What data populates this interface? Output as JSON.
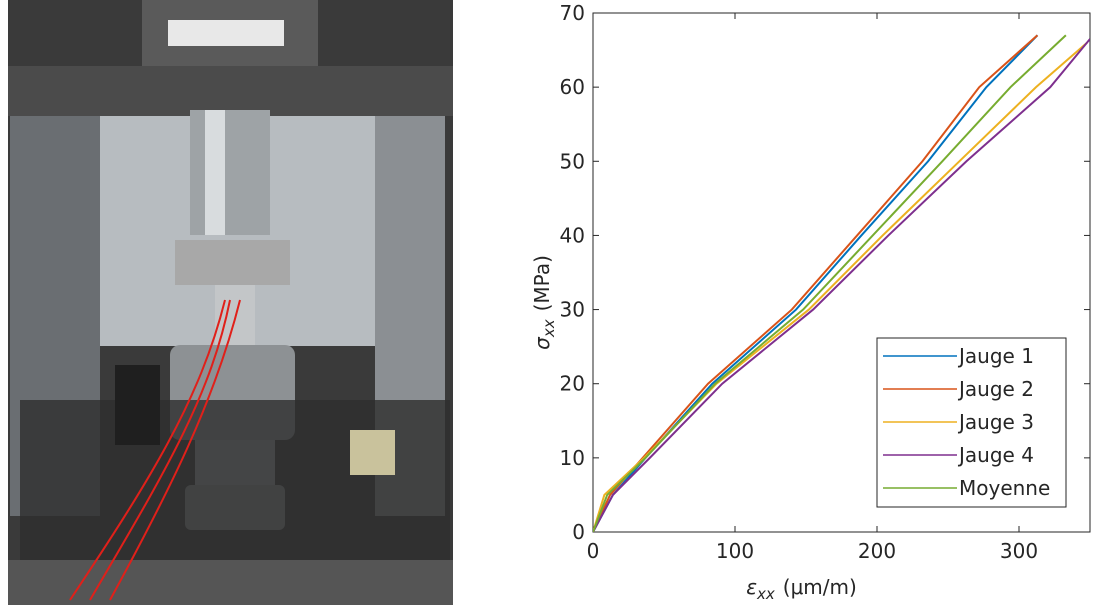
{
  "chart_data": {
    "type": "line",
    "xlabel": {
      "symbol": "ε",
      "subscript": "xx",
      "unit": "(μm/m)"
    },
    "ylabel": {
      "symbol": "σ",
      "subscript": "xx",
      "unit": "(MPa)"
    },
    "xlim": [
      0,
      350
    ],
    "xticks": [
      0,
      100,
      200,
      300
    ],
    "ylim": [
      0,
      70
    ],
    "yticks": [
      0,
      10,
      20,
      30,
      40,
      50,
      60,
      70
    ],
    "grid": false,
    "legend": "lower right",
    "series": [
      {
        "name": "Jauge 1",
        "color": "#0072bd",
        "x": [
          0,
          14,
          37,
          84,
          143,
          189,
          236,
          277,
          313
        ],
        "values": [
          0,
          5,
          10,
          20,
          30,
          40,
          50,
          60,
          67
        ]
      },
      {
        "name": "Jauge 2",
        "color": "#d95319",
        "x": [
          0,
          12,
          35,
          81,
          140,
          186,
          232,
          272,
          313
        ],
        "values": [
          0,
          5,
          10,
          20,
          30,
          40,
          50,
          60,
          67
        ]
      },
      {
        "name": "Jauge 3",
        "color": "#edb120",
        "x": [
          0,
          8,
          36,
          87,
          152,
          204,
          258,
          312,
          348
        ],
        "values": [
          0,
          5,
          10,
          20,
          30,
          40,
          50,
          60,
          66
        ]
      },
      {
        "name": "Jauge 4",
        "color": "#7e2f8e",
        "x": [
          0,
          14,
          40,
          91,
          155,
          208,
          263,
          322,
          350
        ],
        "values": [
          0,
          5,
          10,
          20,
          30,
          40,
          50,
          60,
          66.5
        ]
      },
      {
        "name": "Moyenne",
        "color": "#77ac30",
        "x": [
          0,
          10,
          37,
          86,
          148,
          197,
          246,
          294,
          333
        ],
        "values": [
          0,
          5,
          10,
          20,
          30,
          40,
          50,
          60,
          67
        ]
      }
    ]
  }
}
